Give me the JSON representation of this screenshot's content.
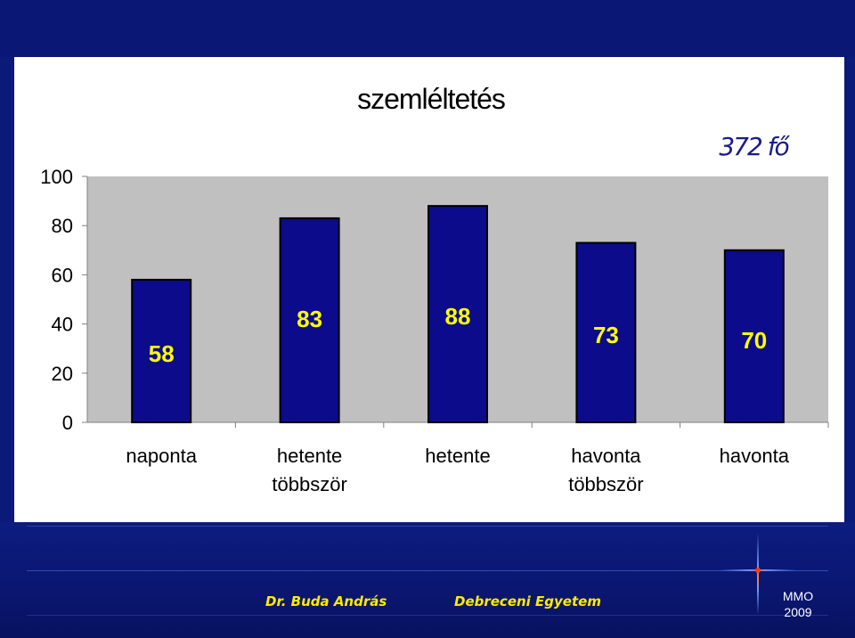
{
  "chart_data": {
    "type": "bar",
    "title": "szemléltetés",
    "annotation": "372 fő",
    "categories": [
      [
        "naponta"
      ],
      [
        "hetente",
        "többször"
      ],
      [
        "hetente"
      ],
      [
        "havonta",
        "többször"
      ],
      [
        "havonta"
      ]
    ],
    "values": [
      58,
      83,
      88,
      73,
      70
    ],
    "data_labels": [
      "58",
      "83",
      "88",
      "73",
      "70"
    ],
    "yticks": [
      0,
      20,
      40,
      60,
      80,
      100
    ],
    "ylim": [
      0,
      100
    ],
    "grid": false,
    "colors": {
      "bar": "#0b0b8c",
      "plot_bg": "#c0c0c0",
      "label": "#ffff00",
      "annotation": "#1a1a8c"
    }
  },
  "footer": {
    "author": "Dr. Buda András",
    "university": "Debreceni Egyetem",
    "mark": "MMO",
    "year": "2009"
  }
}
